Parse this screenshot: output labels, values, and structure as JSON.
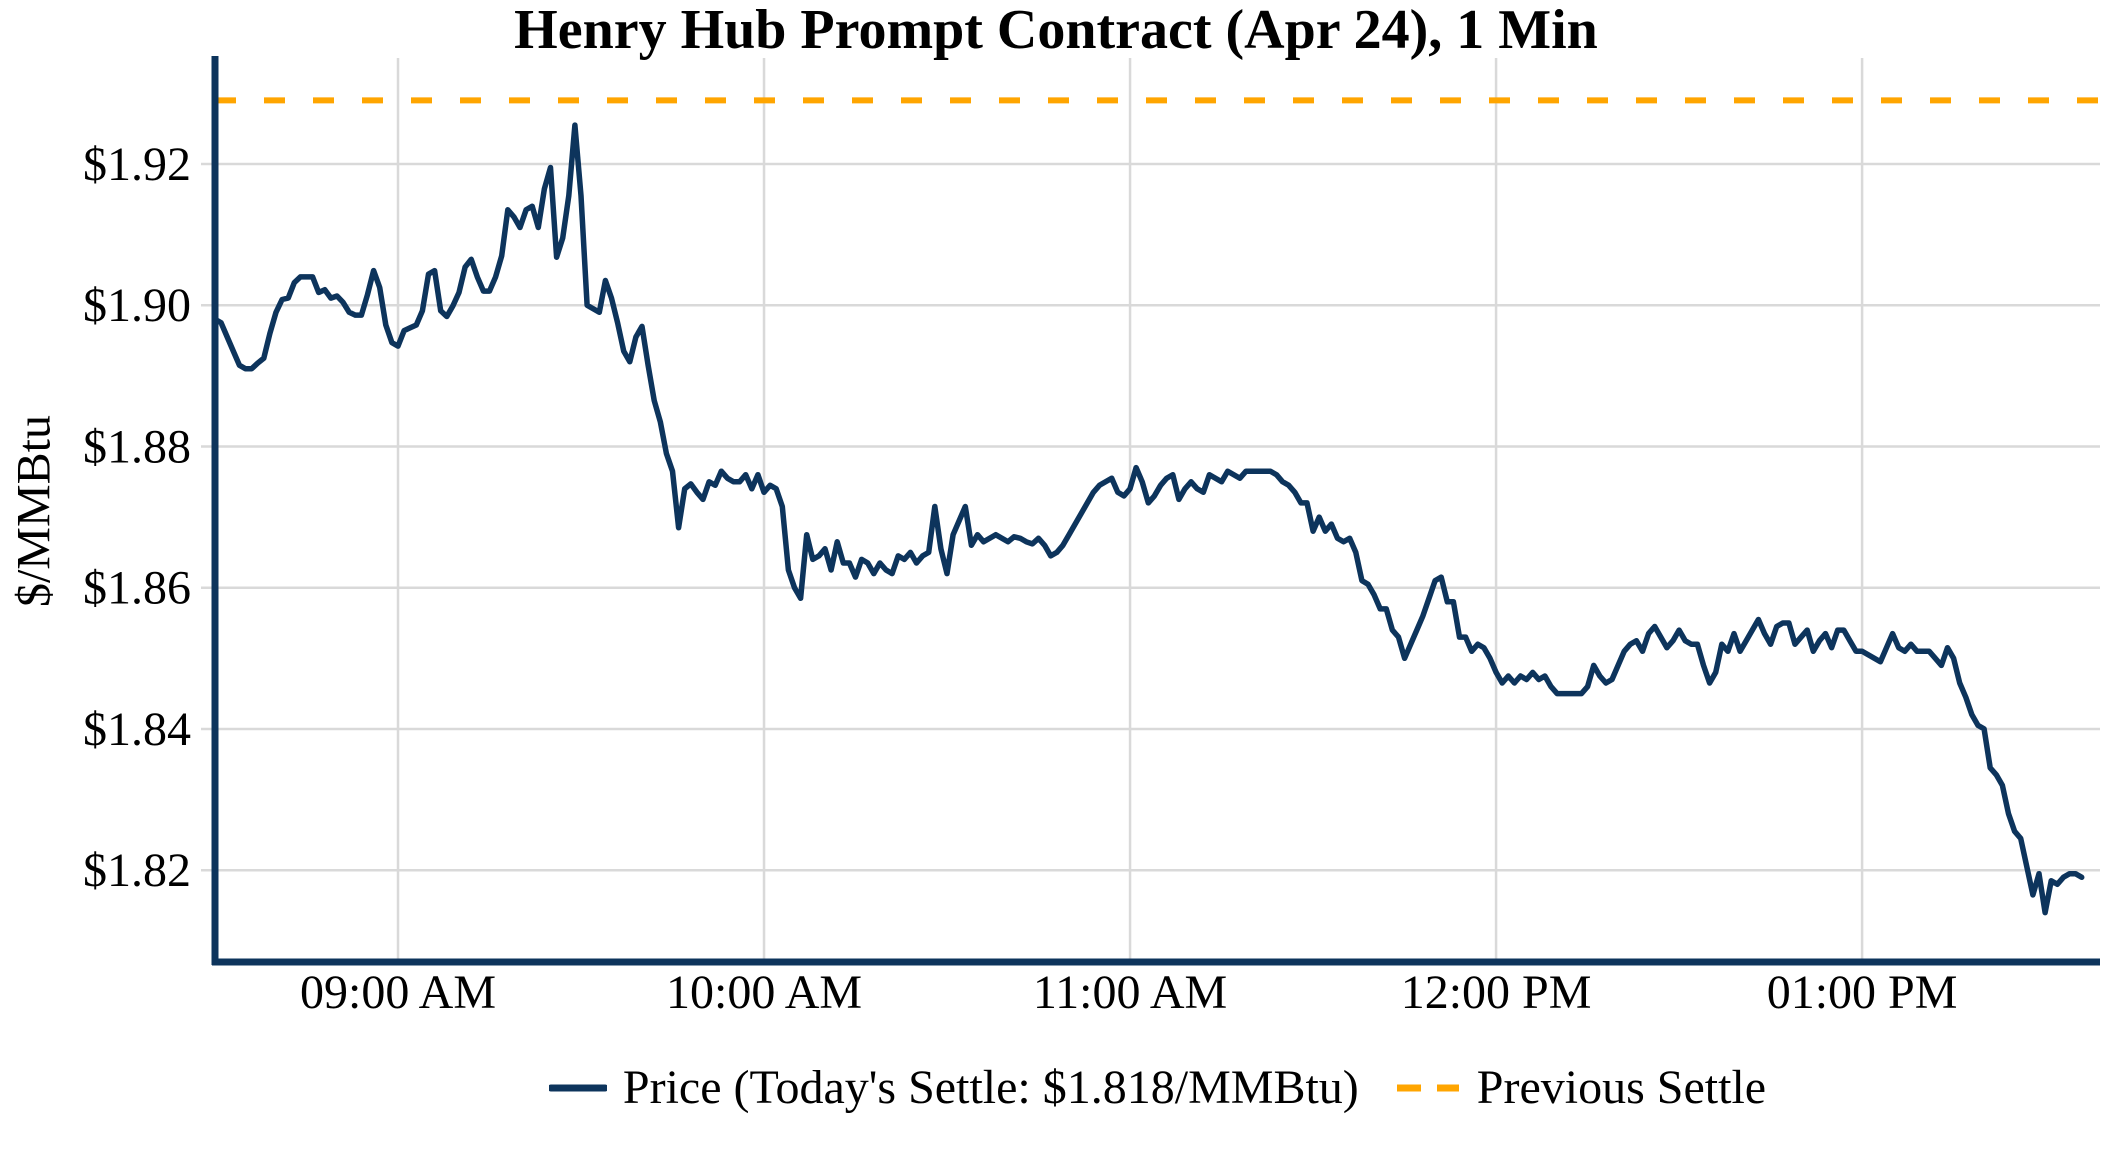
{
  "chart_data": {
    "type": "line",
    "title": "Henry Hub Prompt Contract (Apr 24), 1 Min",
    "ylabel": "$/MMBtu",
    "xlabel": "",
    "grid": true,
    "legend_position": "bottom-center",
    "ylim": [
      1.807,
      1.935
    ],
    "y_ticks": [
      {
        "value": 1.82,
        "label": "$1.82"
      },
      {
        "value": 1.84,
        "label": "$1.84"
      },
      {
        "value": 1.86,
        "label": "$1.86"
      },
      {
        "value": 1.88,
        "label": "$1.88"
      },
      {
        "value": 1.9,
        "label": "$1.90"
      },
      {
        "value": 1.92,
        "label": "$1.92"
      }
    ],
    "x_ticks": [
      {
        "minute": 30,
        "label": "09:00 AM"
      },
      {
        "minute": 90,
        "label": "10:00 AM"
      },
      {
        "minute": 150,
        "label": "11:00 AM"
      },
      {
        "minute": 210,
        "label": "12:00 PM"
      },
      {
        "minute": 270,
        "label": "01:00 PM"
      }
    ],
    "x_start": "08:30 AM",
    "x_interval_minutes": 1,
    "x_total_minutes": 309,
    "previous_settle": 1.929,
    "todays_settle": 1.818,
    "colors": {
      "price": "#0d345c",
      "previous_settle": "#ffa500",
      "grid": "#d9d9d9",
      "text": "#000000"
    },
    "legend": [
      {
        "label": "Price (Today's Settle: $1.818/MMBtu)",
        "style": "solid"
      },
      {
        "label": "Previous Settle",
        "style": "dashed"
      }
    ],
    "series": [
      {
        "name": "Price",
        "values": [
          1.898,
          1.8975,
          1.8955,
          1.8935,
          1.8915,
          1.891,
          1.891,
          1.8918,
          1.8925,
          1.896,
          1.899,
          1.9008,
          1.901,
          1.9032,
          1.904,
          1.904,
          1.904,
          1.9018,
          1.9022,
          1.901,
          1.9013,
          1.9004,
          1.899,
          1.8986,
          1.8986,
          1.9015,
          1.9049,
          1.9025,
          1.8972,
          1.8947,
          1.8942,
          1.8964,
          1.8968,
          1.8972,
          1.8992,
          1.9044,
          1.9049,
          1.8992,
          1.8984,
          1.8999,
          1.9018,
          1.9054,
          1.9065,
          1.904,
          1.902,
          1.902,
          1.904,
          1.907,
          1.9135,
          1.9125,
          1.911,
          1.9135,
          1.914,
          1.911,
          1.9165,
          1.9195,
          1.9068,
          1.9095,
          1.9155,
          1.9255,
          1.9155,
          1.9,
          1.8995,
          1.899,
          1.9035,
          1.901,
          1.8975,
          1.8935,
          1.892,
          1.8955,
          1.897,
          1.8915,
          1.8865,
          1.8835,
          1.879,
          1.8765,
          1.8685,
          1.874,
          1.8747,
          1.8735,
          1.8725,
          1.875,
          1.8745,
          1.8765,
          1.8755,
          1.875,
          1.875,
          1.876,
          1.874,
          1.876,
          1.8735,
          1.8745,
          1.874,
          1.8715,
          1.8625,
          1.86,
          1.8585,
          1.8675,
          1.864,
          1.8645,
          1.8655,
          1.8625,
          1.8665,
          1.8635,
          1.8635,
          1.8615,
          1.864,
          1.8635,
          1.862,
          1.8635,
          1.8625,
          1.862,
          1.8645,
          1.864,
          1.865,
          1.8635,
          1.8645,
          1.865,
          1.8715,
          1.8655,
          1.862,
          1.8675,
          1.8695,
          1.8715,
          1.866,
          1.8675,
          1.8665,
          1.867,
          1.8675,
          1.867,
          1.8665,
          1.8672,
          1.867,
          1.8665,
          1.8662,
          1.867,
          1.866,
          1.8645,
          1.865,
          1.866,
          1.8675,
          1.869,
          1.8705,
          1.872,
          1.8735,
          1.8745,
          1.875,
          1.8755,
          1.8735,
          1.873,
          1.874,
          1.877,
          1.875,
          1.872,
          1.873,
          1.8745,
          1.8755,
          1.876,
          1.8725,
          1.874,
          1.875,
          1.874,
          1.8735,
          1.876,
          1.8755,
          1.875,
          1.8765,
          1.876,
          1.8755,
          1.8765,
          1.8765,
          1.8765,
          1.8765,
          1.8765,
          1.876,
          1.875,
          1.8745,
          1.8735,
          1.872,
          1.872,
          1.868,
          1.87,
          1.868,
          1.869,
          1.867,
          1.8665,
          1.867,
          1.865,
          1.861,
          1.8605,
          1.859,
          1.857,
          1.857,
          1.854,
          1.853,
          1.85,
          1.852,
          1.854,
          1.856,
          1.8585,
          1.861,
          1.8615,
          1.858,
          1.858,
          1.853,
          1.853,
          1.851,
          1.852,
          1.8515,
          1.85,
          1.848,
          1.8465,
          1.8475,
          1.8465,
          1.8475,
          1.847,
          1.848,
          1.847,
          1.8475,
          1.846,
          1.845,
          1.845,
          1.845,
          1.845,
          1.845,
          1.846,
          1.849,
          1.8475,
          1.8465,
          1.847,
          1.849,
          1.851,
          1.852,
          1.8525,
          1.851,
          1.8535,
          1.8545,
          1.853,
          1.8515,
          1.8525,
          1.854,
          1.8525,
          1.852,
          1.852,
          1.849,
          1.8465,
          1.848,
          1.852,
          1.851,
          1.8535,
          1.851,
          1.8525,
          1.854,
          1.8555,
          1.8535,
          1.852,
          1.8545,
          1.855,
          1.855,
          1.852,
          1.853,
          1.854,
          1.851,
          1.8525,
          1.8535,
          1.8515,
          1.854,
          1.854,
          1.8525,
          1.851,
          1.851,
          1.8505,
          1.85,
          1.8495,
          1.8515,
          1.8535,
          1.8515,
          1.851,
          1.852,
          1.851,
          1.851,
          1.851,
          1.85,
          1.849,
          1.8515,
          1.85,
          1.8465,
          1.8445,
          1.842,
          1.8405,
          1.84,
          1.8345,
          1.8335,
          1.832,
          1.828,
          1.8255,
          1.8245,
          1.8205,
          1.8165,
          1.8195,
          1.814,
          1.8185,
          1.818,
          1.819,
          1.8195,
          1.8195,
          1.819
        ]
      }
    ]
  }
}
